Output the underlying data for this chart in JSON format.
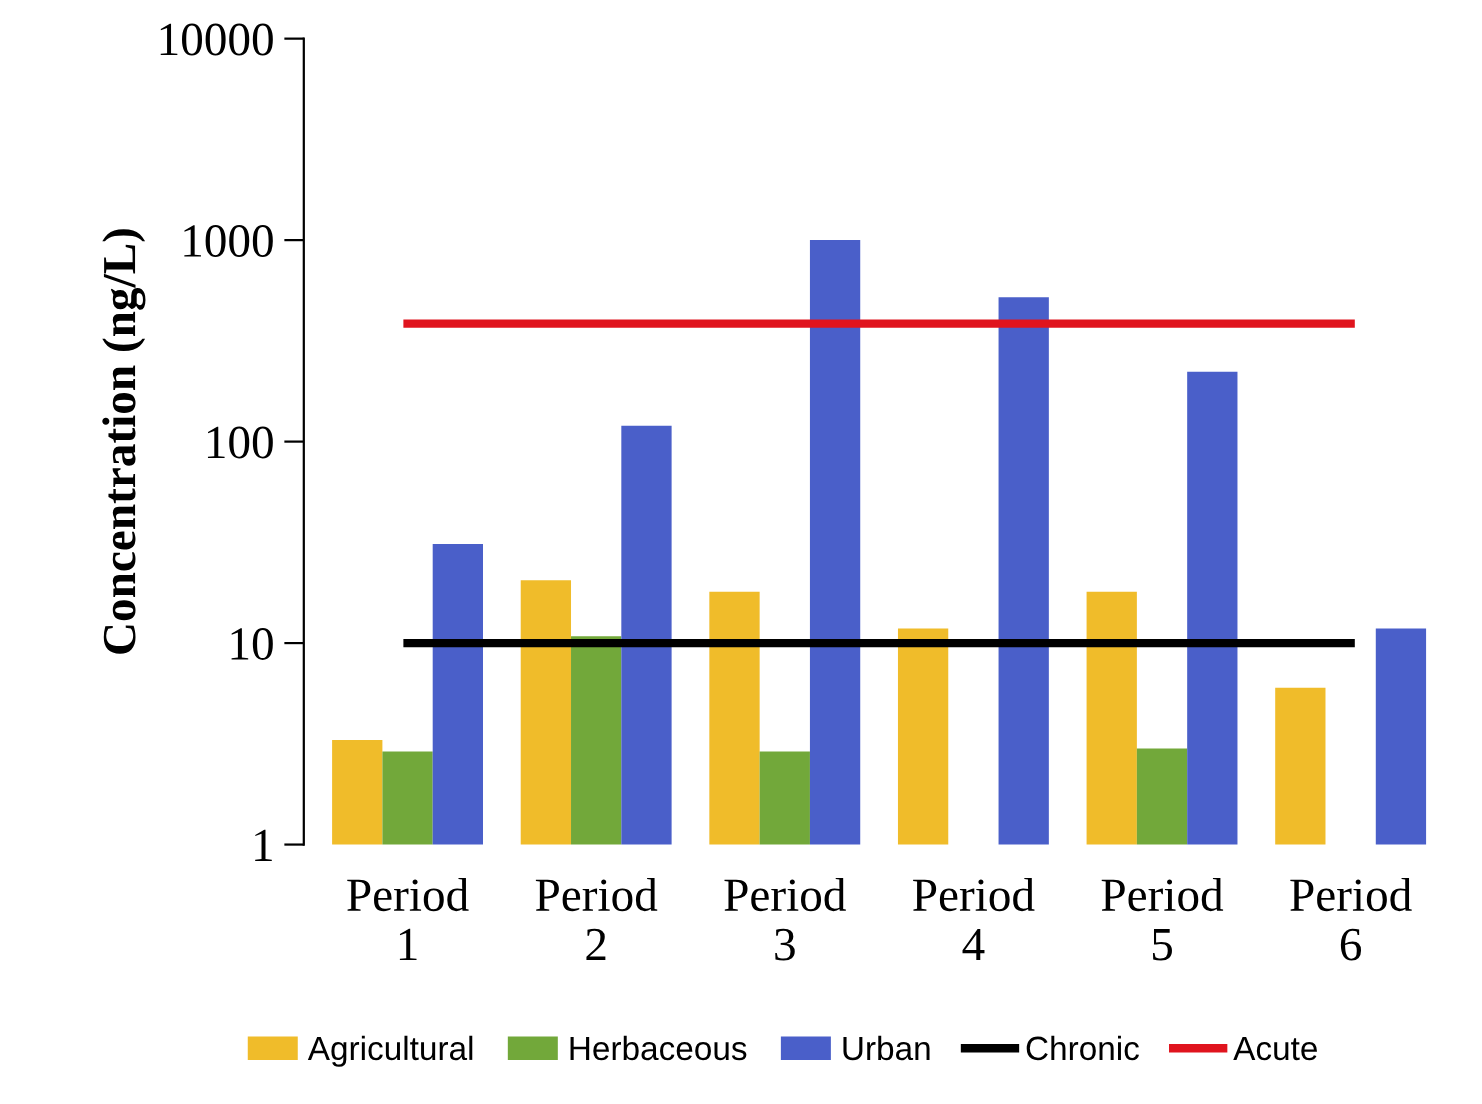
{
  "chart_data": {
    "type": "bar",
    "ylabel": "Concentration (ng/L)",
    "categories": [
      "Period\n1",
      "Period\n2",
      "Period\n3",
      "Period\n4",
      "Period\n5",
      "Period\n6"
    ],
    "series": [
      {
        "name": "Agricultural",
        "color": "#f0bc2a",
        "values": [
          3.3,
          20.5,
          18,
          11.8,
          18,
          6
        ]
      },
      {
        "name": "Herbaceous",
        "color": "#72a83a",
        "values": [
          2.9,
          10.8,
          2.9,
          null,
          3.0,
          null
        ]
      },
      {
        "name": "Urban",
        "color": "#4a5fc9",
        "values": [
          31,
          120,
          1000,
          520,
          222,
          11.8
        ]
      },
      {
        "name": "Chronic",
        "color": "#000000",
        "type": "line",
        "values": [
          10,
          10,
          10,
          10,
          10,
          10
        ]
      },
      {
        "name": "Acute",
        "color": "#e0141e",
        "type": "line",
        "values": [
          385,
          385,
          385,
          385,
          385,
          385
        ]
      }
    ],
    "log": "y",
    "ylim": [
      1,
      10000
    ],
    "yticks": [
      1,
      10,
      100,
      1000,
      10000
    ],
    "grid": false,
    "legend": "bottom",
    "marker": "none",
    "line_style": "solid"
  }
}
